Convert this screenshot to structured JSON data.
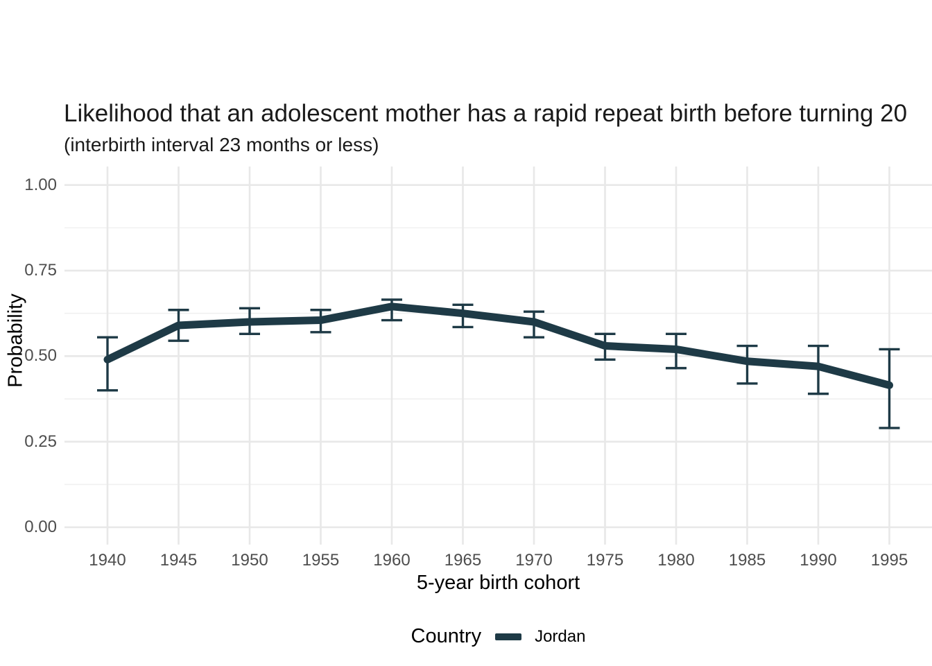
{
  "chart_data": {
    "type": "line",
    "title": "Likelihood that an adolescent mother has a rapid repeat birth before turning 20",
    "subtitle": "(interbirth interval 23 months or less)",
    "xlabel": "5-year birth cohort",
    "ylabel": "Probability",
    "x": [
      1940,
      1945,
      1950,
      1955,
      1960,
      1965,
      1970,
      1975,
      1980,
      1985,
      1990,
      1995
    ],
    "x_tick_labels": [
      "1940",
      "1945",
      "1950",
      "1955",
      "1960",
      "1965",
      "1970",
      "1975",
      "1980",
      "1985",
      "1990",
      "1995"
    ],
    "series": [
      {
        "name": "Jordan",
        "values": [
          0.49,
          0.59,
          0.6,
          0.605,
          0.645,
          0.625,
          0.6,
          0.53,
          0.52,
          0.485,
          0.47,
          0.415
        ],
        "ci_low": [
          0.4,
          0.545,
          0.565,
          0.57,
          0.605,
          0.585,
          0.555,
          0.49,
          0.465,
          0.42,
          0.39,
          0.29
        ],
        "ci_high": [
          0.555,
          0.635,
          0.64,
          0.635,
          0.665,
          0.65,
          0.63,
          0.565,
          0.565,
          0.53,
          0.53,
          0.52
        ]
      }
    ],
    "ylim": [
      0,
      1
    ],
    "y_ticks": [
      0,
      0.25,
      0.5,
      0.75,
      1
    ],
    "y_tick_labels": [
      "0.00",
      "0.25",
      "0.50",
      "0.75",
      "1.00"
    ],
    "y_minor_ticks": [
      0.125,
      0.375,
      0.625,
      0.875
    ],
    "grid": "horizontal major+minor, vertical major; grid on, no axis lines",
    "legend": {
      "title": "Country",
      "position": "bottom",
      "entries": [
        {
          "label": "Jordan"
        }
      ]
    },
    "colors": {
      "line": "#1e3a46",
      "tick_label": "#4d4d4d",
      "grid_major": "#e8e8e8",
      "grid_minor": "#f0f0f0",
      "text": "#1a1a1a"
    }
  }
}
